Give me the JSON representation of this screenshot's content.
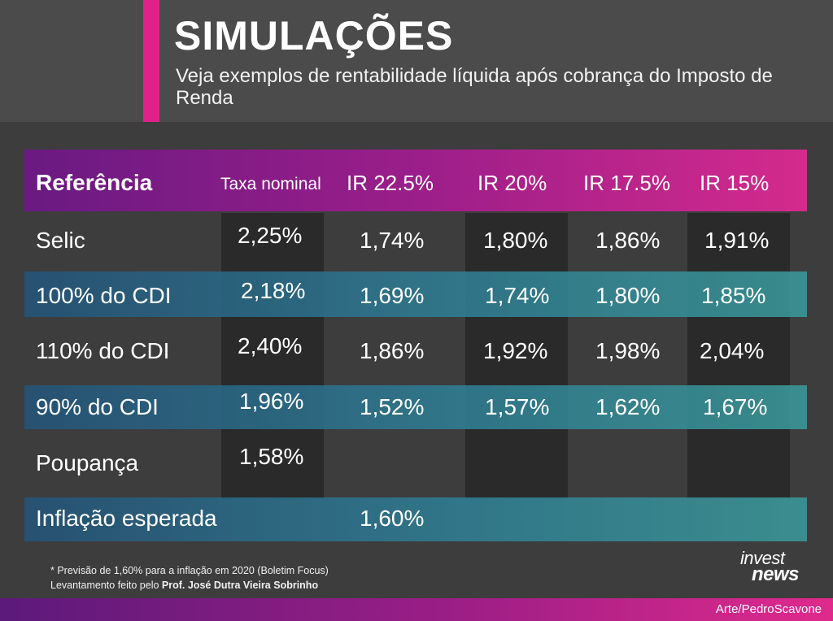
{
  "header": {
    "title": "SIMULAÇÕES",
    "subtitle": "Veja exemplos de rentabilidade líquida após cobrança do Imposto de Renda"
  },
  "table": {
    "columns": [
      "Referência",
      "Taxa nominal",
      "IR 22.5%",
      "IR 20%",
      "IR 17.5%",
      "IR 15%"
    ],
    "rows": [
      {
        "ref": "Selic",
        "nominal": "2,25%",
        "ir225": "1,74%",
        "ir20": "1,80%",
        "ir175": "1,86%",
        "ir15": "1,91%"
      },
      {
        "ref": "100% do CDI",
        "nominal": "2,18%",
        "ir225": "1,69%",
        "ir20": "1,74%",
        "ir175": "1,80%",
        "ir15": "1,85%"
      },
      {
        "ref": "110% do CDI",
        "nominal": "2,40%",
        "ir225": "1,86%",
        "ir20": "1,92%",
        "ir175": "1,98%",
        "ir15": "2,04%"
      },
      {
        "ref": "90% do CDI",
        "nominal": "1,96%",
        "ir225": "1,52%",
        "ir20": "1,57%",
        "ir175": "1,62%",
        "ir15": "1,67%"
      },
      {
        "ref": "Poupança",
        "nominal": "1,58%"
      }
    ],
    "inflation": {
      "label": "Inflação esperada",
      "value": "1,60%"
    }
  },
  "footnote": {
    "line1": "* Previsão de 1,60% para a inflação em 2020 (Boletim Focus)",
    "line2_prefix": "Levantamento feito pelo ",
    "line2_author": "Prof. José Dutra Vieira Sobrinho"
  },
  "logo": {
    "top": "invest",
    "bottom": "news"
  },
  "credit": "Arte/PedroScavone",
  "colors": {
    "magenta": "#e0218a",
    "purple": "#6a1a82",
    "teal": "#2f7d93",
    "background": "#3d3d3d"
  }
}
